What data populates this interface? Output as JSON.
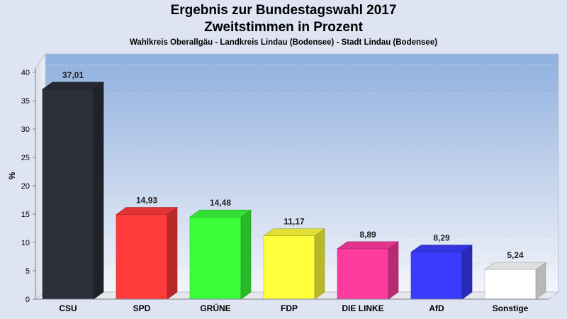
{
  "chart_data": {
    "type": "bar",
    "title": "Ergebnis zur Bundestagswahl 2017",
    "subtitle": "Zweitstimmen in Prozent",
    "caption": "Wahlkreis Oberallgäu - Landkreis Lindau (Bodensee) - Stadt Lindau (Bodensee)",
    "ylabel": "%",
    "xlabel": "",
    "ylim": [
      0,
      40
    ],
    "yticks": [
      0,
      5,
      10,
      15,
      20,
      25,
      30,
      35,
      40
    ],
    "grid": true,
    "categories": [
      "CSU",
      "SPD",
      "GRÜNE",
      "FDP",
      "DIE LINKE",
      "AfD",
      "Sonstige"
    ],
    "values": [
      37.01,
      14.93,
      14.48,
      11.17,
      8.89,
      8.29,
      5.24
    ],
    "labels": [
      "37,01",
      "14,93",
      "14,48",
      "11,17",
      "8,89",
      "8,29",
      "5,24"
    ],
    "colors": [
      "#2b2f38",
      "#ff3b3b",
      "#3bff3b",
      "#ffff3b",
      "#ff3b9e",
      "#3b3bff",
      "#ffffff"
    ]
  }
}
